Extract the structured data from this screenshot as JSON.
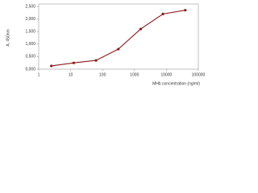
{
  "chart_data": {
    "type": "line",
    "x_label": "MHb concentration (ng/ml)",
    "y_label": "A, 450nm",
    "x": [
      2.5,
      12.5,
      62.5,
      312.5,
      1562.5,
      7812.5,
      39062.5
    ],
    "series": [
      {
        "color": "#8b1a1a",
        "values": [
          0.13,
          0.25,
          0.35,
          0.8,
          1.6,
          2.2,
          2.35
        ]
      }
    ],
    "xlog": true,
    "xlim": [
      1,
      100000
    ],
    "xticks": [
      1,
      10,
      100,
      1000,
      10000,
      100000
    ],
    "ylim": [
      0,
      2.5
    ],
    "yticks": [
      {
        "value": 0,
        "label": "0,000"
      },
      {
        "value": 0.5,
        "label": "0,500"
      },
      {
        "value": 1,
        "label": "1,000"
      },
      {
        "value": 1.5,
        "label": "1,500"
      },
      {
        "value": 2,
        "label": "2,000"
      },
      {
        "value": 2.5,
        "label": "2,500"
      }
    ]
  }
}
